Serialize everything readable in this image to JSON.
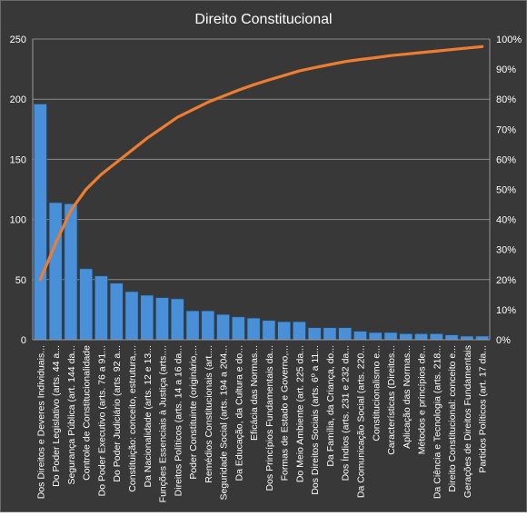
{
  "chart_data": {
    "type": "bar",
    "title": "Direito Constitucional",
    "xlabel": "",
    "ylabel": "",
    "ylim": [
      0,
      250
    ],
    "y2lim": [
      0,
      1
    ],
    "yticks": [
      "0",
      "50",
      "100",
      "150",
      "200",
      "250"
    ],
    "y2ticks": [
      "0%",
      "10%",
      "20%",
      "30%",
      "40%",
      "50%",
      "60%",
      "70%",
      "80%",
      "90%",
      "100%"
    ],
    "grid": true,
    "legend": "none",
    "bar_color": "#4a90d9",
    "line_color": "#ed7d31",
    "background": "#383838",
    "categories": [
      "Dos Direitos e Deveres Individuais...",
      "Do Poder Legislativo (arts. 44 a...",
      "Segurança Pública (art. 144 da...",
      "Controle de Constitucionalidade",
      "Do Poder Executivo (arts. 76 a 91...",
      "Do Poder Judiciário (arts. 92 a...",
      "Constituição: conceito, estrutura,...",
      "Da Nacionalidade (arts. 12 e 13...",
      "Funções Essenciais à Justiça (arts....",
      "Direitos Políticos (arts. 14 a 16 da...",
      "Poder Constituinte (originário,...",
      "Remédios Constitucionais (art....",
      "Seguridade Social (arts. 194 a 204...",
      "Da Educação, da Cultura e do...",
      "Eficácia das Normas...",
      "Dos Princípios Fundamentais da...",
      "Formas de Estado e Governo,...",
      "Do Meio Ambiente (art. 225 da...",
      "Dos Direitos Sociais (arts. 6º a 11...",
      "Da Família, da Criança, do...",
      "Dos Índios (arts. 231 e 232 da...",
      "Da Comunicação Social (arts. 220...",
      "Constitucionalismo e...",
      "Características (Direitos...",
      "Aplicação das Normas...",
      "Métodos e princípios de...",
      "Da Ciência e Tecnologia (arts. 218...",
      "Direito Constitucional: conceito e...",
      "Gerações de Direitos Fundamentais",
      "Partidos Políticos (art. 17 da..."
    ],
    "series": [
      {
        "type": "bar",
        "axis": "left",
        "values": [
          196,
          114,
          113,
          59,
          53,
          47,
          40,
          37,
          35,
          34,
          24,
          24,
          21,
          19,
          18,
          16,
          15,
          15,
          10,
          10,
          10,
          7,
          6,
          6,
          5,
          5,
          5,
          4,
          3,
          3
        ]
      },
      {
        "type": "line",
        "axis": "right",
        "values": [
          0.2,
          0.32,
          0.43,
          0.5,
          0.55,
          0.59,
          0.63,
          0.67,
          0.705,
          0.74,
          0.765,
          0.79,
          0.81,
          0.83,
          0.848,
          0.864,
          0.879,
          0.894,
          0.905,
          0.915,
          0.925,
          0.932,
          0.938,
          0.945,
          0.95,
          0.955,
          0.96,
          0.965,
          0.97,
          0.975
        ]
      }
    ]
  }
}
